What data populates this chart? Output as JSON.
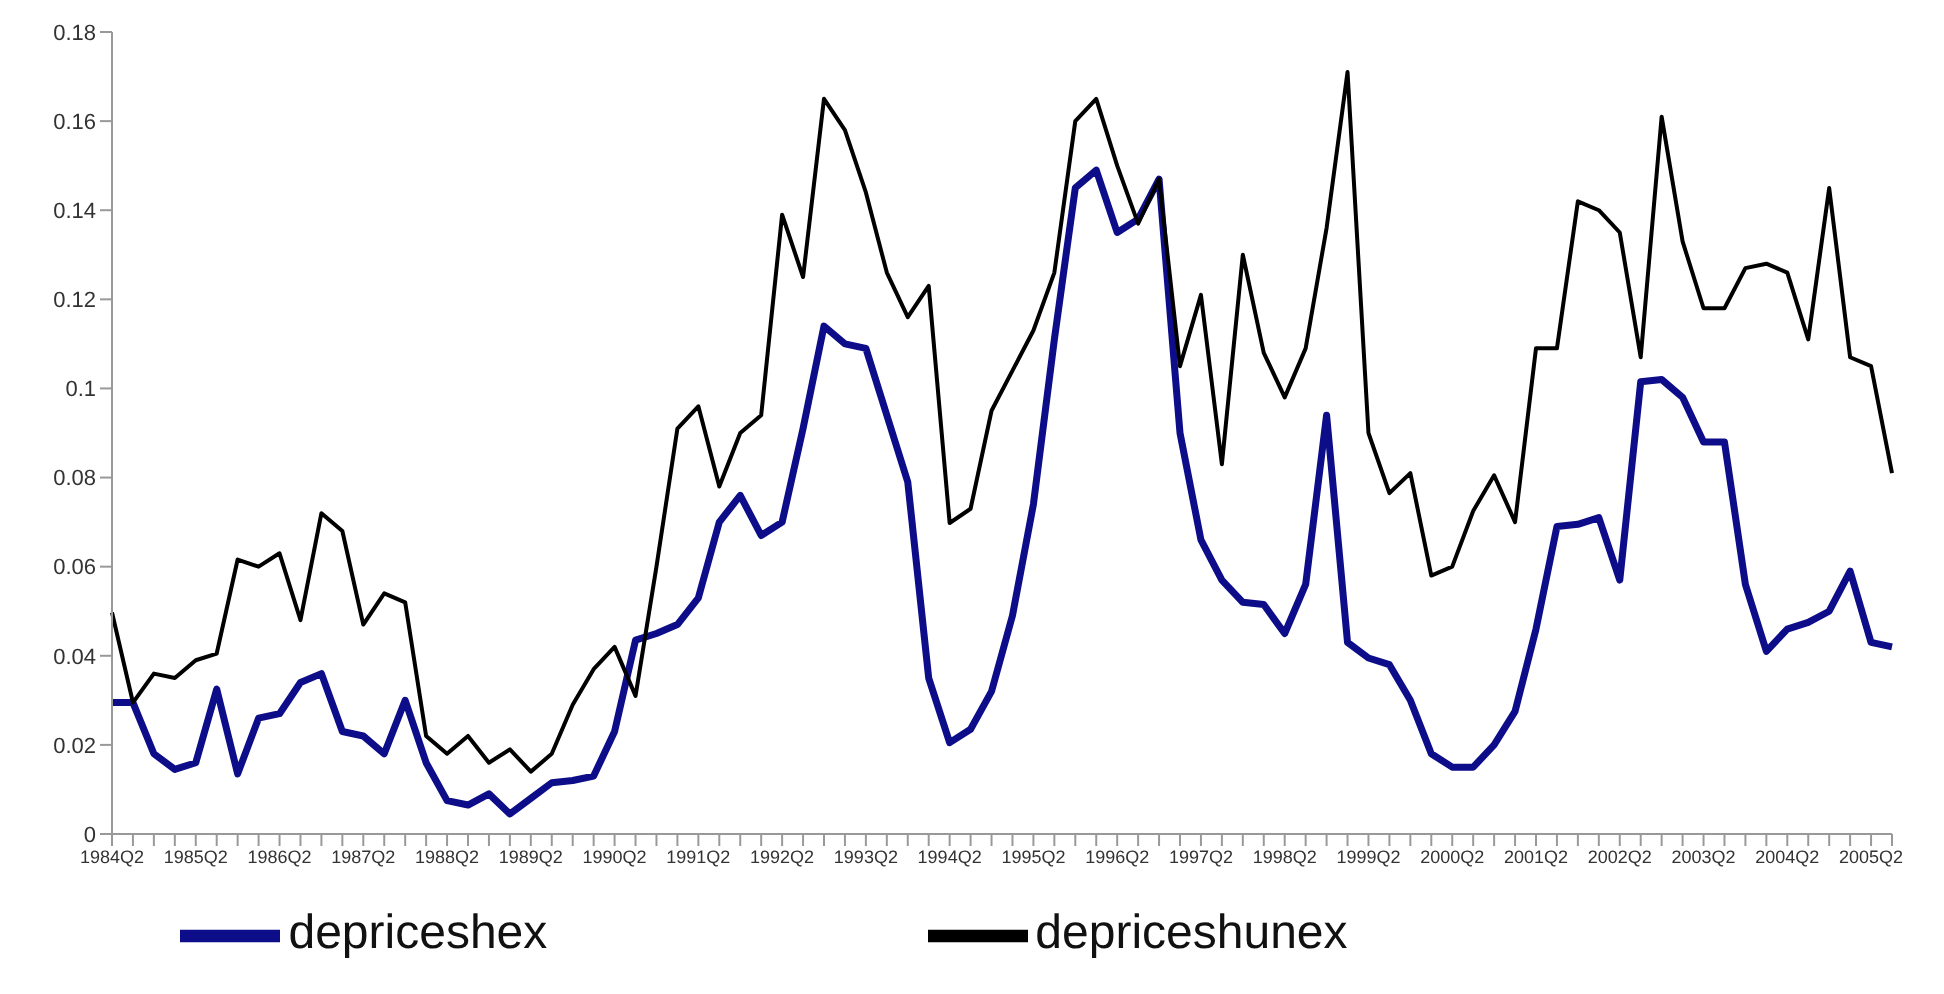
{
  "chart_data": {
    "type": "line",
    "categories": [
      "1984Q2",
      null,
      null,
      null,
      "1985Q2",
      null,
      null,
      null,
      "1986Q2",
      null,
      null,
      null,
      "1987Q2",
      null,
      null,
      null,
      "1988Q2",
      null,
      null,
      null,
      "1989Q2",
      null,
      null,
      null,
      "1990Q2",
      null,
      null,
      null,
      "1991Q2",
      null,
      null,
      null,
      "1992Q2",
      null,
      null,
      null,
      "1993Q2",
      null,
      null,
      null,
      "1994Q2",
      null,
      null,
      null,
      "1995Q2",
      null,
      null,
      null,
      "1996Q2",
      null,
      null,
      null,
      "1997Q2",
      null,
      null,
      null,
      "1998Q2",
      null,
      null,
      null,
      "1999Q2",
      null,
      null,
      null,
      "2000Q2",
      null,
      null,
      null,
      "2001Q2",
      null,
      null,
      null,
      "2002Q2",
      null,
      null,
      null,
      "2003Q2",
      null,
      null,
      null,
      "2004Q2",
      null,
      null,
      null,
      "2005Q2",
      null
    ],
    "series": [
      {
        "name": "depriceshex",
        "color": "#0d0d8a",
        "values": [
          0.0295,
          0.0295,
          0.018,
          0.0145,
          0.016,
          0.0325,
          0.0135,
          0.026,
          0.027,
          0.034,
          0.036,
          0.023,
          0.022,
          0.018,
          0.03,
          0.016,
          0.0075,
          0.0065,
          0.009,
          0.0045,
          0.008,
          0.0115,
          0.012,
          0.013,
          0.023,
          0.0435,
          0.045,
          0.047,
          0.053,
          0.07,
          0.076,
          0.067,
          0.07,
          0.091,
          0.114,
          0.11,
          0.109,
          0.094,
          0.079,
          0.035,
          0.0205,
          0.0235,
          0.032,
          0.049,
          0.074,
          0.111,
          0.145,
          0.149,
          0.135,
          0.138,
          0.147,
          0.09,
          0.066,
          0.057,
          0.052,
          0.0515,
          0.045,
          0.056,
          0.094,
          0.043,
          0.0395,
          0.038,
          0.03,
          0.018,
          0.015,
          0.015,
          0.02,
          0.0275,
          0.046,
          0.069,
          0.0695,
          0.071,
          0.057,
          0.1015,
          0.102,
          0.098,
          0.088,
          0.088,
          0.056,
          0.041,
          0.046,
          0.0475,
          0.05,
          0.059,
          0.043,
          0.042
        ]
      },
      {
        "name": "depriceshunex",
        "color": "#000000",
        "values": [
          0.0497,
          0.0295,
          0.036,
          0.035,
          0.039,
          0.0405,
          0.0616,
          0.06,
          0.063,
          0.048,
          0.072,
          0.068,
          0.047,
          0.054,
          0.052,
          0.022,
          0.018,
          0.022,
          0.016,
          0.019,
          0.014,
          0.018,
          0.029,
          0.037,
          0.042,
          0.031,
          0.06,
          0.091,
          0.096,
          0.078,
          0.09,
          0.094,
          0.139,
          0.125,
          0.165,
          0.158,
          0.144,
          0.126,
          0.116,
          0.123,
          0.0698,
          0.073,
          0.095,
          0.104,
          0.113,
          0.126,
          0.16,
          0.165,
          0.15,
          0.137,
          0.147,
          0.105,
          0.121,
          0.083,
          0.13,
          0.108,
          0.098,
          0.109,
          0.136,
          0.171,
          0.09,
          0.0765,
          0.081,
          0.058,
          0.06,
          0.0725,
          0.0805,
          0.07,
          0.109,
          0.109,
          0.142,
          0.14,
          0.135,
          0.107,
          0.161,
          0.133,
          0.118,
          0.118,
          0.127,
          0.128,
          0.126,
          0.111,
          0.145,
          0.107,
          0.105,
          0.081
        ]
      }
    ],
    "ylim": [
      0,
      0.18
    ],
    "yticks": [
      0,
      0.02,
      0.04,
      0.06,
      0.08,
      0.1,
      0.12,
      0.14,
      0.16,
      0.18
    ],
    "grid": false,
    "legend": "bottom",
    "marker": "none",
    "line_style": "solid"
  }
}
